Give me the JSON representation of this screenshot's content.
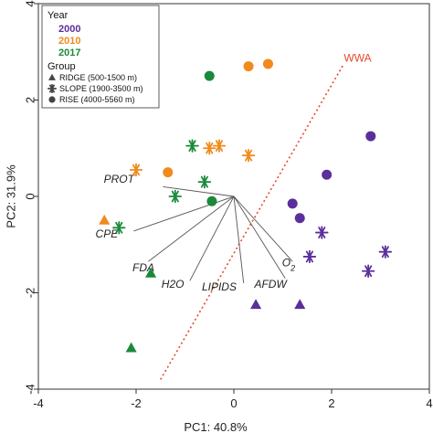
{
  "chart_data": {
    "type": "scatter",
    "xlabel": "PC1: 40.8%",
    "ylabel": "PC2: 31.9%",
    "xlim": [
      -4,
      4
    ],
    "ylim": [
      -4,
      4
    ],
    "xticks": [
      "-4",
      "-2",
      "0",
      "2",
      "4"
    ],
    "yticks": [
      "4",
      "2",
      "0",
      "-2",
      "-4"
    ],
    "xtick_values": [
      -4,
      -2,
      0,
      2,
      4
    ],
    "ytick_values": [
      4,
      2,
      0,
      -2,
      -4
    ],
    "legend": {
      "year_title": "Year",
      "years": [
        {
          "label": "2000",
          "color": "#5b2f9b"
        },
        {
          "label": "2010",
          "color": "#f08a1c"
        },
        {
          "label": "2017",
          "color": "#1a8a3a"
        }
      ],
      "group_title": "Group",
      "groups": [
        {
          "label": "RIDGE (500-1500 m)",
          "shape": "triangle"
        },
        {
          "label": "SLOPE (1900-3500 m)",
          "shape": "asterisk"
        },
        {
          "label": "RISE (4000-5560 m)",
          "shape": "circle"
        }
      ]
    },
    "points": [
      {
        "year": "2000",
        "group": "RISE",
        "x": 2.8,
        "y": 1.25
      },
      {
        "year": "2000",
        "group": "RISE",
        "x": 1.9,
        "y": 0.45
      },
      {
        "year": "2000",
        "group": "RISE",
        "x": 1.2,
        "y": -0.15
      },
      {
        "year": "2000",
        "group": "RISE",
        "x": 1.35,
        "y": -0.45
      },
      {
        "year": "2000",
        "group": "SLOPE",
        "x": 1.8,
        "y": -0.75
      },
      {
        "year": "2000",
        "group": "SLOPE",
        "x": 1.55,
        "y": -1.25
      },
      {
        "year": "2000",
        "group": "SLOPE",
        "x": 3.1,
        "y": -1.15
      },
      {
        "year": "2000",
        "group": "SLOPE",
        "x": 2.75,
        "y": -1.55
      },
      {
        "year": "2000",
        "group": "RIDGE",
        "x": 0.45,
        "y": -2.25
      },
      {
        "year": "2000",
        "group": "RIDGE",
        "x": 1.35,
        "y": -2.25
      },
      {
        "year": "2010",
        "group": "RISE",
        "x": 0.3,
        "y": 2.7
      },
      {
        "year": "2010",
        "group": "RISE",
        "x": 0.7,
        "y": 2.75
      },
      {
        "year": "2010",
        "group": "RISE",
        "x": -1.35,
        "y": 0.5
      },
      {
        "year": "2010",
        "group": "SLOPE",
        "x": -0.5,
        "y": 1.0
      },
      {
        "year": "2010",
        "group": "SLOPE",
        "x": -0.3,
        "y": 1.05
      },
      {
        "year": "2010",
        "group": "SLOPE",
        "x": 0.3,
        "y": 0.85
      },
      {
        "year": "2010",
        "group": "SLOPE",
        "x": -2.0,
        "y": 0.55
      },
      {
        "year": "2010",
        "group": "RIDGE",
        "x": -2.65,
        "y": -0.5
      },
      {
        "year": "2017",
        "group": "RISE",
        "x": -0.5,
        "y": 2.5
      },
      {
        "year": "2017",
        "group": "RISE",
        "x": -0.45,
        "y": -0.1
      },
      {
        "year": "2017",
        "group": "SLOPE",
        "x": -0.85,
        "y": 1.05
      },
      {
        "year": "2017",
        "group": "SLOPE",
        "x": -0.6,
        "y": 0.3
      },
      {
        "year": "2017",
        "group": "SLOPE",
        "x": -1.2,
        "y": 0.0
      },
      {
        "year": "2017",
        "group": "SLOPE",
        "x": -2.35,
        "y": -0.65
      },
      {
        "year": "2017",
        "group": "RIDGE",
        "x": -1.7,
        "y": -1.6
      },
      {
        "year": "2017",
        "group": "RIDGE",
        "x": -2.1,
        "y": -3.15
      }
    ],
    "vectors": [
      {
        "label": "PROT",
        "x": -1.45,
        "y": 0.2,
        "lx": -2.35,
        "ly": 0.28
      },
      {
        "label": "CPE",
        "x": -2.05,
        "y": -0.72,
        "lx": -2.6,
        "ly": -0.85
      },
      {
        "label": "FDA",
        "x": -1.75,
        "y": -1.35,
        "lx": -1.85,
        "ly": -1.55
      },
      {
        "label": "H2O",
        "x": -0.9,
        "y": -1.75,
        "lx": -1.25,
        "ly": -1.9
      },
      {
        "label": "LIPIDS",
        "x": 0.2,
        "y": -1.8,
        "lx": -0.3,
        "ly": -1.95
      },
      {
        "label": "AFDW",
        "x": 1.05,
        "y": -1.7,
        "lx": 0.75,
        "ly": -1.9
      },
      {
        "label": "O2",
        "x": 1.2,
        "y": -1.35,
        "lx": 1.12,
        "ly": -1.45
      }
    ],
    "wwa_line": {
      "label": "WWA",
      "x1": -1.5,
      "y1": -3.8,
      "x2": 2.25,
      "y2": 2.75,
      "lx": 2.25,
      "ly": 2.8,
      "color": "#e8482c"
    }
  }
}
